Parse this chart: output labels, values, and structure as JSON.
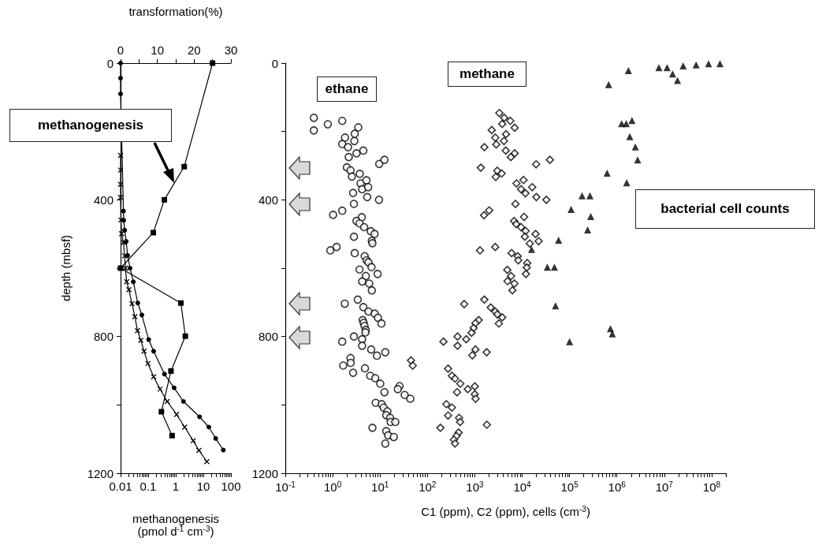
{
  "chart_data": [
    {
      "type": "line",
      "xlabel": "methanogenesis\n(pmol d$^{-1}$ cm$^{-3}$)",
      "x2label": "transformation(%)",
      "ylabel": "depth (mbsf)",
      "xlim": [
        0.01,
        100
      ],
      "log": "x",
      "xticks": [
        0.01,
        {
          "value": 0.02,
          "label": null
        },
        {
          "value": 0.03,
          "label": null
        },
        {
          "value": 0.04,
          "label": null
        },
        {
          "value": 0.05,
          "label": null
        },
        {
          "value": 0.06,
          "label": null
        },
        {
          "value": 0.07,
          "label": null
        },
        {
          "value": 0.08,
          "label": null
        },
        {
          "value": 0.09,
          "label": null
        },
        0.1,
        {
          "value": 0.2,
          "label": null
        },
        {
          "value": 0.3,
          "label": null
        },
        {
          "value": 0.4,
          "label": null
        },
        {
          "value": 0.5,
          "label": null
        },
        {
          "value": 0.6,
          "label": null
        },
        {
          "value": 0.7,
          "label": null
        },
        {
          "value": 0.8,
          "label": null
        },
        {
          "value": 0.9,
          "label": null
        },
        1,
        {
          "value": 2,
          "label": null
        },
        {
          "value": 3,
          "label": null
        },
        {
          "value": 4,
          "label": null
        },
        {
          "value": 5,
          "label": null
        },
        {
          "value": 6,
          "label": null
        },
        {
          "value": 7,
          "label": null
        },
        {
          "value": 8,
          "label": null
        },
        {
          "value": 9,
          "label": null
        },
        10,
        {
          "value": 20,
          "label": null
        },
        {
          "value": 30,
          "label": null
        },
        {
          "value": 40,
          "label": null
        },
        {
          "value": 50,
          "label": null
        },
        {
          "value": 60,
          "label": null
        },
        {
          "value": 70,
          "label": null
        },
        {
          "value": 80,
          "label": null
        },
        {
          "value": 90,
          "label": null
        },
        100
      ],
      "x2lim": [
        0,
        30
      ],
      "x2ticks": [
        0,
        {
          "value": 5,
          "label": null
        },
        10,
        {
          "value": 15,
          "label": null
        },
        20,
        {
          "value": 25,
          "label": null
        },
        30
      ],
      "ylim": [
        1200,
        0
      ],
      "yticks": [
        0,
        {
          "value": 200,
          "label": null
        },
        400,
        {
          "value": 600,
          "label": null
        },
        800,
        {
          "value": 1000,
          "label": null
        },
        1200
      ],
      "annotations": [
        "methanogenesis"
      ],
      "series": [
        {
          "color": "#000000",
          "axis": "x2",
          "marker": "square",
          "x": [
            25.0,
            17.3,
            11.9,
            8.9,
            0,
            16.4,
            17.6,
            13.7,
            11.1,
            14.0
          ],
          "values": [
            0,
            303,
            400,
            496,
            600,
            702,
            799,
            901,
            1020,
            1090
          ]
        },
        {
          "color": "#000000",
          "marker": "circle",
          "x": [
            0.01,
            0.01,
            0.01,
            0.0127,
            0.013,
            0.014,
            0.016,
            0.018,
            0.022,
            0.029,
            0.042,
            0.059,
            0.104,
            0.158,
            0.39,
            0.87,
            1.9,
            7.3,
            15.8,
            28,
            53
          ],
          "values": [
            0,
            44,
            90,
            433,
            460,
            489,
            522,
            563,
            600,
            640,
            702,
            737,
            809,
            843,
            910,
            950,
            990,
            1035,
            1065,
            1098,
            1132
          ]
        },
        {
          "color": "#000000",
          "marker": "cross",
          "x": [
            0.01,
            0.01,
            0.01,
            0.01,
            0.0103,
            0.0109,
            0.0127,
            0.014,
            0.015,
            0.0166,
            0.02,
            0.026,
            0.033,
            0.041,
            0.054,
            0.071,
            0.098,
            0.158,
            0.27,
            0.49,
            1.07,
            2.1,
            4.3,
            6.9,
            13.4
          ],
          "values": [
            270,
            313,
            355,
            393,
            459,
            499,
            525,
            564,
            600,
            640,
            663,
            704,
            742,
            783,
            811,
            843,
            879,
            918,
            954,
            990,
            1028,
            1065,
            1105,
            1133,
            1166
          ]
        }
      ]
    },
    {
      "type": "scatter",
      "xlabel": "C1 (ppm), C2 (ppm), cells (cm$^{-3}$)",
      "xlim": [
        0.1,
        200000000
      ],
      "log": "x",
      "xticks": [
        {
          "value": 0.1,
          "label": "10$^{-1}$"
        },
        {
          "value": 0.2,
          "label": null
        },
        {
          "value": 0.3,
          "label": null
        },
        {
          "value": 0.4,
          "label": null
        },
        {
          "value": 0.5,
          "label": null
        },
        {
          "value": 0.6,
          "label": null
        },
        {
          "value": 0.7,
          "label": null
        },
        {
          "value": 0.8,
          "label": null
        },
        {
          "value": 0.9,
          "label": null
        },
        {
          "value": 1,
          "label": "10$^{0}$"
        },
        {
          "value": 2,
          "label": null
        },
        {
          "value": 3,
          "label": null
        },
        {
          "value": 4,
          "label": null
        },
        {
          "value": 5,
          "label": null
        },
        {
          "value": 6,
          "label": null
        },
        {
          "value": 7,
          "label": null
        },
        {
          "value": 8,
          "label": null
        },
        {
          "value": 9,
          "label": null
        },
        {
          "value": 10,
          "label": "10$^{1}$"
        },
        {
          "value": 20,
          "label": null
        },
        {
          "value": 30,
          "label": null
        },
        {
          "value": 40,
          "label": null
        },
        {
          "value": 50,
          "label": null
        },
        {
          "value": 60,
          "label": null
        },
        {
          "value": 70,
          "label": null
        },
        {
          "value": 80,
          "label": null
        },
        {
          "value": 90,
          "label": null
        },
        {
          "value": 100,
          "label": "10$^{2}$"
        },
        {
          "value": 200,
          "label": null
        },
        {
          "value": 300,
          "label": null
        },
        {
          "value": 400,
          "label": null
        },
        {
          "value": 500,
          "label": null
        },
        {
          "value": 600,
          "label": null
        },
        {
          "value": 700,
          "label": null
        },
        {
          "value": 800,
          "label": null
        },
        {
          "value": 900,
          "label": null
        },
        {
          "value": 1000,
          "label": "10$^{3}$"
        },
        {
          "value": 2000,
          "label": null
        },
        {
          "value": 3000,
          "label": null
        },
        {
          "value": 4000,
          "label": null
        },
        {
          "value": 5000,
          "label": null
        },
        {
          "value": 6000,
          "label": null
        },
        {
          "value": 7000,
          "label": null
        },
        {
          "value": 8000,
          "label": null
        },
        {
          "value": 9000,
          "label": null
        },
        {
          "value": 10000,
          "label": "10$^{4}$"
        },
        {
          "value": 20000,
          "label": null
        },
        {
          "value": 30000,
          "label": null
        },
        {
          "value": 40000,
          "label": null
        },
        {
          "value": 50000,
          "label": null
        },
        {
          "value": 60000,
          "label": null
        },
        {
          "value": 70000,
          "label": null
        },
        {
          "value": 80000,
          "label": null
        },
        {
          "value": 90000,
          "label": null
        },
        {
          "value": 100000,
          "label": "10$^{5}$"
        },
        {
          "value": 200000,
          "label": null
        },
        {
          "value": 300000,
          "label": null
        },
        {
          "value": 400000,
          "label": null
        },
        {
          "value": 500000,
          "label": null
        },
        {
          "value": 600000,
          "label": null
        },
        {
          "value": 700000,
          "label": null
        },
        {
          "value": 800000,
          "label": null
        },
        {
          "value": 900000,
          "label": null
        },
        {
          "value": 1000000,
          "label": "10$^{6}$"
        },
        {
          "value": 2000000,
          "label": null
        },
        {
          "value": 3000000,
          "label": null
        },
        {
          "value": 4000000,
          "label": null
        },
        {
          "value": 5000000,
          "label": null
        },
        {
          "value": 6000000,
          "label": null
        },
        {
          "value": 7000000,
          "label": null
        },
        {
          "value": 8000000,
          "label": null
        },
        {
          "value": 9000000,
          "label": null
        },
        {
          "value": 10000000,
          "label": "10$^{7}$"
        },
        {
          "value": 20000000,
          "label": null
        },
        {
          "value": 30000000,
          "label": null
        },
        {
          "value": 40000000,
          "label": null
        },
        {
          "value": 50000000,
          "label": null
        },
        {
          "value": 60000000,
          "label": null
        },
        {
          "value": 70000000,
          "label": null
        },
        {
          "value": 80000000,
          "label": null
        },
        {
          "value": 90000000,
          "label": null
        },
        {
          "value": 100000000,
          "label": "10$^{8}$"
        },
        {
          "value": 200000000,
          "label": null
        }
      ],
      "ylim": [
        1200,
        0
      ],
      "yticks": [
        0,
        {
          "value": 200,
          "label": null
        },
        400,
        {
          "value": 600,
          "label": null
        },
        800,
        {
          "value": 1000,
          "label": null
        },
        1200
      ],
      "series": [
        {
          "name": "ethane",
          "color": "#000000",
          "marker": "circle",
          "x": [
            0.4,
            0.4,
            0.79,
            1.59,
            3.47,
            2.92,
            1.82,
            2.87,
            1.59,
            2.11,
            3.18,
            4.44,
            2.18,
            9.6,
            12.4,
            1.99,
            2.38,
            2.54,
            3.73,
            3.88,
            5.16,
            4.18,
            5.62,
            2.7,
            5.36,
            9.5,
            2.81,
            1.59,
            1.02,
            4.12,
            3.18,
            3.69,
            4.61,
            6.37,
            7.67,
            6.7,
            6.9,
            2.81,
            0.89,
            1.21,
            2.92,
            4.73,
            5.2,
            5.7,
            6.6,
            8.9,
            3.69,
            5.0,
            4.2,
            5.9,
            6.7,
            1.8,
            3.38,
            4.44,
            5.7,
            7.7,
            9.0,
            10.7,
            4.3,
            4.5,
            4.7,
            5.0,
            4.9,
            2.81,
            4.18,
            4.18,
            1.59,
            6.5,
            8.6,
            12.9,
            2.38,
            2.4,
            1.67,
            2.7,
            4.8,
            6.2,
            7.9,
            10.1,
            12.4,
            8.1,
            10.8,
            11.9,
            14.3,
            13.5,
            16.3,
            16.7,
            6.9,
            13.5,
            14.8,
            19.5,
            12.9,
            25.8,
            23.7,
            33.1,
            43.5,
            21
          ],
          "values": [
            160,
            197,
            179,
            169,
            188,
            207,
            218,
            228,
            237,
            246,
            264,
            256,
            275,
            295,
            283,
            305,
            314,
            332,
            324,
            352,
            343,
            369,
            363,
            380,
            392,
            400,
            412,
            432,
            444,
            451,
            462,
            469,
            480,
            492,
            500,
            520,
            527,
            508,
            548,
            538,
            556,
            565,
            577,
            583,
            597,
            617,
            604,
            623,
            639,
            645,
            665,
            704,
            692,
            714,
            727,
            733,
            745,
            762,
            752,
            760,
            769,
            781,
            788,
            800,
            808,
            827,
            815,
            838,
            856,
            846,
            863,
            877,
            885,
            906,
            893,
            915,
            922,
            938,
            963,
            994,
            998,
            1008,
            1019,
            1030,
            1038,
            1050,
            1067,
            1077,
            1089,
            1094,
            1113,
            945,
            954,
            971,
            982,
            1050
          ]
        },
        {
          "name": "methane",
          "color": "#000000",
          "marker": "diamond",
          "x": [
            3300,
            4180,
            5620,
            6950,
            3790,
            2280,
            4560,
            2710,
            4130,
            2840,
            1590,
            4500,
            6950,
            5770,
            19700,
            38500,
            1340,
            2990,
            3690,
            2770,
            7590,
            10700,
            9470,
            11700,
            16300,
            19900,
            32400,
            7210,
            1570,
            2010,
            11000,
            6770,
            7480,
            9460,
            11800,
            11400,
            19200,
            22300,
            14500,
            1290,
            2700,
            5980,
            8060,
            8270,
            12800,
            12500,
            12000,
            4850,
            5840,
            4910,
            6860,
            6210,
            597,
            1590,
            2170,
            2710,
            2990,
            3790,
            3220,
            1210,
            1030,
            944,
            855,
            218,
            432,
            432,
            659,
            1030,
            887,
            1780,
            273,
            329,
            382,
            495,
            422,
            710,
            1000,
            1000,
            1040,
            251,
            329,
            273,
            188,
            466,
            489,
            454,
            411,
            363,
            382,
            1800,
            45,
            49
          ],
          "values": [
            146,
            160,
            169,
            189,
            178,
            196,
            208,
            218,
            228,
            238,
            246,
            256,
            264,
            275,
            296,
            283,
            306,
            315,
            323,
            333,
            352,
            342,
            369,
            381,
            363,
            392,
            400,
            412,
            445,
            431,
            450,
            462,
            471,
            480,
            491,
            508,
            500,
            521,
            528,
            548,
            538,
            556,
            565,
            577,
            585,
            598,
            617,
            605,
            623,
            638,
            645,
            665,
            705,
            692,
            715,
            727,
            735,
            744,
            762,
            752,
            761,
            775,
            789,
            815,
            800,
            827,
            808,
            838,
            855,
            846,
            894,
            915,
            923,
            938,
            963,
            954,
            946,
            969,
            982,
            998,
            1008,
            1031,
            1067,
            1038,
            1050,
            1081,
            1091,
            1102,
            1113,
            1058,
            870,
            885
          ]
        },
        {
          "name": "bacterial cell counts",
          "color": "#000000",
          "marker": "triangle",
          "x": [
            150000000,
            86000000,
            47000000,
            25000000,
            11500000,
            7700000,
            15000000,
            19000000,
            1750000,
            670000,
            1260000,
            1570000,
            2080000,
            1870000,
            2450000,
            2740000,
            620000,
            1610000,
            184000,
            270000,
            108000,
            280000,
            241000,
            58700,
            15800,
            34000,
            48000,
            50600,
            730000,
            800000,
            100000
          ],
          "values": [
            2,
            2,
            5,
            8,
            13,
            13,
            32,
            51,
            22,
            63,
            177,
            177,
            168,
            215,
            245,
            283,
            322,
            350,
            388,
            388,
            428,
            449,
            488,
            518,
            545,
            597,
            597,
            710,
            777,
            792,
            815
          ]
        }
      ]
    }
  ]
}
